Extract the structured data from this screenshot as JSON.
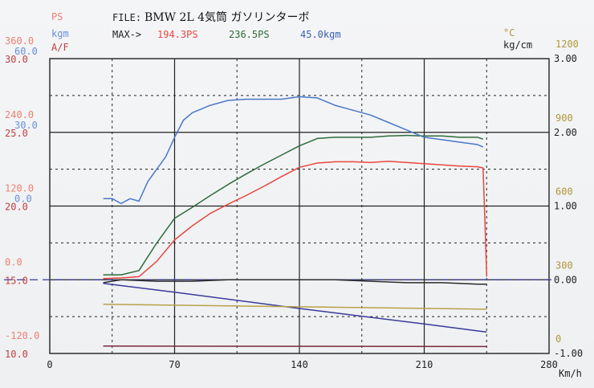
{
  "colors": {
    "ps": "#e8473f",
    "kgm": "#4a78c8",
    "afr": "#2b2b2b",
    "temp": "#b8a24a",
    "boost": "#3a3a9a",
    "power_green": "#2e6b3a",
    "ps_label": "#f08070",
    "kgm_label": "#6a8fd8",
    "afr_label": "#c04040",
    "temp_label": "#b0983a",
    "boost_label": "#222222",
    "grid": "#222222",
    "extra_line": "#7a2a3a"
  },
  "header": {
    "file_prefix": "FILE:",
    "file_name": "BMW 2L 4気筒 ガソリンターボ",
    "max_prefix": "MAX->",
    "max_ps": "194.3PS",
    "max_green": "236.5PS",
    "max_kgm": "45.0kgm"
  },
  "left_axis": {
    "unit_ps": "PS",
    "unit_kgm": "kgm",
    "unit_afr": "A/F",
    "rows": [
      {
        "ps": "360.0",
        "kgm": "60.0",
        "afr": "30.0"
      },
      {
        "ps": "240.0",
        "kgm": "30.0",
        "afr": "25.0"
      },
      {
        "ps": "120.0",
        "kgm": "0.0",
        "afr": "20.0"
      },
      {
        "ps": "0.0",
        "kgm": "",
        "afr": "15.0"
      },
      {
        "ps": "-120.0",
        "kgm": "",
        "afr": "10.0"
      }
    ]
  },
  "right_axis": {
    "unit_temp": "°C",
    "unit_boost": "kg/cm",
    "rows": [
      {
        "temp": "1200",
        "boost": "3.00"
      },
      {
        "temp": "900",
        "boost": "2.00"
      },
      {
        "temp": "600",
        "boost": "1.00"
      },
      {
        "temp": "300",
        "boost": "0.00"
      },
      {
        "temp": "0",
        "boost": "-1.00"
      }
    ]
  },
  "x_axis": {
    "unit": "Km/h",
    "ticks": [
      "0",
      "70",
      "140",
      "210",
      "280"
    ]
  },
  "chart_data": {
    "type": "line",
    "title": "BMW 2L 4気筒 ガソリンターボ",
    "xlabel": "Km/h",
    "xlim": [
      0,
      280
    ],
    "x_ticks": [
      0,
      70,
      140,
      210,
      280
    ],
    "grid": true,
    "series": [
      {
        "name": "194.3PS",
        "axis": "PS",
        "ylim": [
          -120,
          360
        ],
        "color": "#e8473f",
        "x": [
          30,
          40,
          50,
          60,
          70,
          80,
          90,
          100,
          110,
          120,
          130,
          140,
          150,
          160,
          170,
          180,
          190,
          200,
          210,
          220,
          230,
          240,
          243,
          244,
          245
        ],
        "y": [
          2,
          3,
          5,
          30,
          65,
          88,
          108,
          123,
          137,
          152,
          168,
          183,
          190,
          192,
          192,
          191,
          193,
          191,
          189,
          187,
          185,
          184,
          182,
          100,
          5
        ]
      },
      {
        "name": "236.5PS",
        "color": "#2e6b3a",
        "axis": "PS",
        "ylim": [
          -120,
          360
        ],
        "x": [
          30,
          40,
          50,
          60,
          70,
          80,
          90,
          100,
          110,
          120,
          130,
          140,
          150,
          160,
          170,
          180,
          190,
          200,
          210,
          220,
          230,
          240,
          243
        ],
        "y": [
          8,
          8,
          15,
          60,
          100,
          118,
          137,
          155,
          172,
          188,
          203,
          218,
          230,
          232,
          232,
          232,
          234,
          235,
          234,
          234,
          232,
          232,
          229
        ]
      },
      {
        "name": "45.0kgm",
        "axis": "kgm",
        "ylim": [
          -60,
          60
        ],
        "color": "#4a78c8",
        "x": [
          30,
          35,
          40,
          45,
          50,
          55,
          60,
          65,
          70,
          75,
          80,
          90,
          100,
          110,
          120,
          130,
          140,
          150,
          160,
          170,
          180,
          190,
          200,
          210,
          220,
          230,
          240,
          243
        ],
        "y": [
          3,
          3,
          1,
          3,
          2,
          10,
          15,
          20,
          28,
          35,
          38,
          41,
          43,
          43.5,
          43.5,
          43.5,
          44.5,
          44,
          41,
          39,
          37,
          34,
          31,
          28,
          27,
          26,
          25,
          24
        ]
      },
      {
        "axis": "A/F",
        "ylim": [
          10,
          30
        ],
        "color": "#2b2b2b",
        "x": [
          30,
          40,
          60,
          80,
          100,
          120,
          140,
          160,
          180,
          200,
          220,
          240,
          245
        ],
        "y": [
          14.8,
          15.0,
          14.9,
          14.9,
          15.0,
          15.0,
          15.0,
          15.0,
          14.9,
          14.8,
          14.8,
          14.7,
          14.7
        ]
      },
      {
        "axis": "kg/cm",
        "ylim": [
          -1,
          3
        ],
        "color": "#3a3a9a",
        "x": [
          30,
          70,
          140,
          210,
          245
        ],
        "y": [
          -0.05,
          -0.17,
          -0.39,
          -0.6,
          -0.71
        ]
      },
      {
        "axis": "°C",
        "ylim": [
          0,
          1200
        ],
        "color": "#b8a24a",
        "x": [
          30,
          245
        ],
        "y": [
          200,
          180
        ]
      },
      {
        "axis": "°C",
        "ylim": [
          0,
          1200
        ],
        "color": "#7a2a3a",
        "x": [
          30,
          245
        ],
        "y": [
          30,
          28
        ]
      }
    ]
  }
}
